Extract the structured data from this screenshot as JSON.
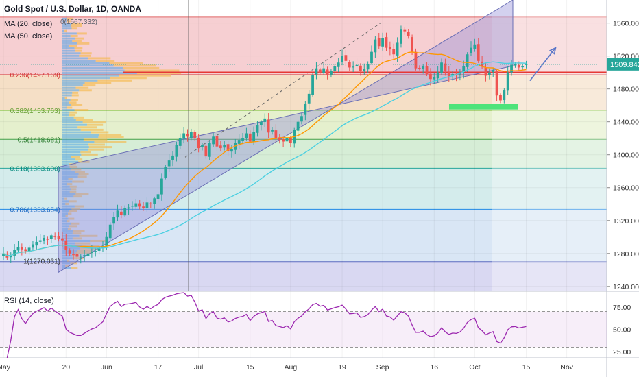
{
  "header": {
    "title": "Gold Spot / U.S. Dollar, 1D, OANDA",
    "ma20_label": "MA (20, close)",
    "ma50_label": "MA (50, close)",
    "fib_top_label": "0(1567.332)",
    "rsi_label": "RSI (14, close)"
  },
  "colors": {
    "up": "#26a69a",
    "down": "#ef5350",
    "ma20": "#ff9800",
    "ma50": "#4dd0e1",
    "rsi": "#9c27b0",
    "channel_fill": "#9591d9",
    "resistance_line": "#e53935",
    "support_zone": "#4ee37a",
    "price_tag": "#26a69a"
  },
  "current_price_tag": "1509.842",
  "chart_data": [
    {
      "type": "candlestick",
      "title": "Gold Spot / U.S. Dollar, 1D, OANDA",
      "price_axis": {
        "ticks": [
          "1560.000",
          "1520.000",
          "1480.000",
          "1440.000",
          "1400.000",
          "1360.000",
          "1320.000",
          "1280.000",
          "1240.000"
        ],
        "tick_values": [
          1560,
          1520,
          1480,
          1440,
          1400,
          1360,
          1320,
          1280,
          1240
        ],
        "ylim": [
          1234,
          1588
        ]
      },
      "time_axis": {
        "ticks": [
          "May",
          "20",
          "Jun",
          "17",
          "Jul",
          "15",
          "Aug",
          "19",
          "Sep",
          "16",
          "Oct",
          "15",
          "Nov"
        ],
        "tick_day_index": [
          0,
          17,
          28,
          42,
          53,
          67,
          78,
          92,
          103,
          117,
          128,
          142,
          153
        ]
      },
      "last_price": 1509.842,
      "candles_close": [
        1280,
        1275,
        1278,
        1284,
        1288,
        1285,
        1283,
        1287,
        1291,
        1294,
        1296,
        1299,
        1297,
        1302,
        1300,
        1298,
        1296,
        1284,
        1280,
        1278,
        1276,
        1276,
        1278,
        1280,
        1282,
        1283,
        1286,
        1289,
        1300,
        1315,
        1324,
        1332,
        1327,
        1335,
        1336,
        1338,
        1341,
        1337,
        1335,
        1342,
        1340,
        1347,
        1352,
        1371,
        1385,
        1393,
        1399,
        1412,
        1420,
        1426,
        1422,
        1428,
        1420,
        1408,
        1412,
        1398,
        1414,
        1422,
        1410,
        1408,
        1412,
        1404,
        1407,
        1414,
        1418,
        1420,
        1426,
        1416,
        1428,
        1436,
        1440,
        1444,
        1427,
        1430,
        1420,
        1418,
        1416,
        1420,
        1414,
        1430,
        1440,
        1447,
        1462,
        1474,
        1497,
        1505,
        1500,
        1505,
        1497,
        1502,
        1508,
        1512,
        1520,
        1514,
        1506,
        1507,
        1509,
        1502,
        1504,
        1510,
        1525,
        1540,
        1532,
        1542,
        1530,
        1528,
        1522,
        1536,
        1552,
        1550,
        1544,
        1525,
        1505,
        1505,
        1508,
        1498,
        1492,
        1494,
        1500,
        1512,
        1502,
        1495,
        1498,
        1497,
        1500,
        1508,
        1522,
        1530,
        1534,
        1514,
        1507,
        1496,
        1500,
        1503,
        1472,
        1466,
        1478,
        1500,
        1509,
        1510,
        1506,
        1508,
        1509.842
      ],
      "indicators": {
        "ma20": {
          "name": "MA (20, close)"
        },
        "ma50": {
          "name": "MA (50, close)"
        }
      },
      "fibonacci": [
        {
          "ratio": "0",
          "value": 1567.332,
          "label": "0(1567.332)"
        },
        {
          "ratio": "0.236",
          "value": 1497.169,
          "label": "0.236(1497.169)"
        },
        {
          "ratio": "0.382",
          "value": 1453.763,
          "label": "0.382(1453.763)"
        },
        {
          "ratio": "0.5",
          "value": 1418.681,
          "label": "0.5(1418.681)"
        },
        {
          "ratio": "0.618",
          "value": 1383.6,
          "label": "0.618(1383.600)"
        },
        {
          "ratio": "0.786",
          "value": 1333.654,
          "label": "0.786(1333.654)"
        },
        {
          "ratio": "1",
          "value": 1270.031,
          "label": "1(1270.031)"
        }
      ],
      "annotations": {
        "resistance_level": 1500,
        "support_zone": [
          1455,
          1462
        ],
        "projection_arrow": {
          "from_day": 143,
          "from_price": 1490,
          "to_day": 150,
          "to_price": 1530
        }
      }
    },
    {
      "type": "line",
      "title": "RSI (14, close)",
      "ticks": [
        "75.00",
        "50.00",
        "25.00"
      ],
      "tick_values": [
        75,
        50,
        25
      ],
      "ylim": [
        18,
        92
      ],
      "bands": [
        30,
        70
      ]
    }
  ]
}
